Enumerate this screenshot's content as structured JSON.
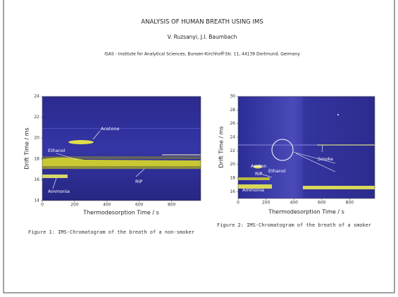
{
  "header": {
    "title": "ANALYSIS OF HUMAN BREATH USING IMS",
    "authors": "V. Ruzsanyi, J.I. Baumbach",
    "affiliation": "ISAS - Institute for Analytical Sciences, Bunsen-Kirchhoff-Str. 11, 44139 Dortmund, Germany"
  },
  "figures": [
    {
      "xlabel": "Thermodesorption Time / s",
      "ylabel": "Drift Time / ms",
      "xlim": [
        0,
        980
      ],
      "ylim": [
        14,
        24
      ],
      "xticks": [
        0,
        200,
        400,
        600,
        800
      ],
      "yticks": [
        14,
        16,
        18,
        20,
        22,
        24
      ],
      "annotations": [
        "Acetone",
        "Ethanol",
        "RIP",
        "Ammonia"
      ],
      "caption": "Figure 1: IMS-Chromatogram of the breath of a non-smoker"
    },
    {
      "xlabel": "Thermodesorption Time / s",
      "ylabel": "Drift Time / ms",
      "xlim": [
        0,
        980
      ],
      "ylim": [
        15,
        30
      ],
      "xticks": [
        0,
        200,
        400,
        600,
        800
      ],
      "yticks": [
        16,
        18,
        20,
        22,
        24,
        26,
        28,
        30
      ],
      "annotations": [
        "Smoke",
        "Aceton",
        "RIP",
        "Ethanol",
        "Ammonia"
      ],
      "caption": "Figure 2: IMS-Chromatogram of the breath of a smoker"
    }
  ]
}
